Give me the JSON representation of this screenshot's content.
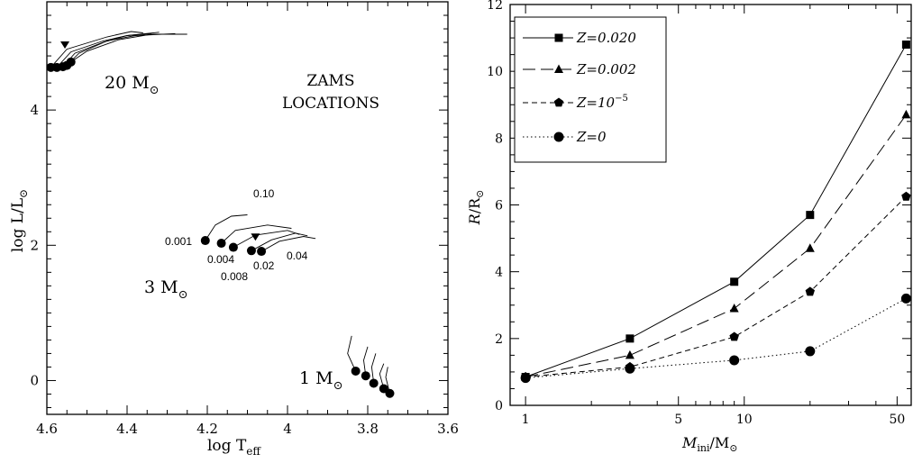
{
  "chart_data": [
    {
      "type": "scatter",
      "title": "",
      "xlabel": "log T",
      "xlabel_sub": "eff",
      "ylabel": "log L/L",
      "ylabel_sub": "⊙",
      "xlim": [
        4.6,
        3.6
      ],
      "ylim": [
        -0.5,
        5.6
      ],
      "x_ticks": [
        {
          "value": 4.6,
          "label": "4.6"
        },
        {
          "value": 4.4,
          "label": "4.4"
        },
        {
          "value": 4.2,
          "label": "4.2"
        },
        {
          "value": 4.0,
          "label": "4"
        },
        {
          "value": 3.8,
          "label": "3.8"
        },
        {
          "value": 3.6,
          "label": "3.6"
        }
      ],
      "y_ticks": [
        {
          "value": 0,
          "label": "0"
        },
        {
          "value": 2,
          "label": "2"
        },
        {
          "value": 4,
          "label": "4"
        }
      ],
      "annotations": [
        {
          "id": "zams-line1",
          "text": "ZAMS"
        },
        {
          "id": "zams-line2",
          "text": "LOCATIONS"
        }
      ],
      "mass_groups": [
        {
          "label": "20 M",
          "label_sub": "⊙",
          "zams_points": [
            {
              "x": 4.59,
              "y": 4.63
            },
            {
              "x": 4.575,
              "y": 4.63
            },
            {
              "x": 4.56,
              "y": 4.64
            },
            {
              "x": 4.55,
              "y": 4.66
            },
            {
              "x": 4.54,
              "y": 4.71
            }
          ],
          "tracks": [
            [
              [
                4.59,
                4.63
              ],
              [
                4.55,
                4.9
              ],
              [
                4.45,
                5.08
              ],
              [
                4.39,
                5.16
              ],
              [
                4.36,
                5.14
              ]
            ],
            [
              [
                4.575,
                4.63
              ],
              [
                4.54,
                4.86
              ],
              [
                4.46,
                5.02
              ],
              [
                4.4,
                5.1
              ],
              [
                4.34,
                5.13
              ]
            ],
            [
              [
                4.56,
                4.64
              ],
              [
                4.53,
                4.84
              ],
              [
                4.46,
                5.0
              ],
              [
                4.4,
                5.1
              ],
              [
                4.32,
                5.15
              ]
            ],
            [
              [
                4.55,
                4.66
              ],
              [
                4.52,
                4.84
              ],
              [
                4.45,
                5.02
              ],
              [
                4.38,
                5.1
              ],
              [
                4.28,
                5.13
              ]
            ],
            [
              [
                4.54,
                4.71
              ],
              [
                4.5,
                4.87
              ],
              [
                4.42,
                5.04
              ],
              [
                4.34,
                5.12
              ],
              [
                4.25,
                5.12
              ]
            ]
          ],
          "marker": {
            "x": 4.555,
            "y": 4.96
          }
        },
        {
          "label": "3 M",
          "label_sub": "⊙",
          "zams_points": [
            {
              "x": 4.205,
              "y": 2.07
            },
            {
              "x": 4.165,
              "y": 2.03
            },
            {
              "x": 4.135,
              "y": 1.97
            },
            {
              "x": 4.09,
              "y": 1.92
            },
            {
              "x": 4.065,
              "y": 1.91
            }
          ],
          "tracks": [
            [
              [
                4.205,
                2.07
              ],
              [
                4.18,
                2.3
              ],
              [
                4.14,
                2.43
              ],
              [
                4.1,
                2.45
              ]
            ],
            [
              [
                4.165,
                2.03
              ],
              [
                4.13,
                2.22
              ],
              [
                4.05,
                2.3
              ],
              [
                3.99,
                2.25
              ]
            ],
            [
              [
                4.135,
                1.97
              ],
              [
                4.08,
                2.15
              ],
              [
                4.0,
                2.22
              ],
              [
                3.97,
                2.16
              ]
            ],
            [
              [
                4.09,
                1.92
              ],
              [
                4.04,
                2.08
              ],
              [
                3.98,
                2.18
              ],
              [
                3.95,
                2.14
              ]
            ],
            [
              [
                4.065,
                1.91
              ],
              [
                4.02,
                2.06
              ],
              [
                3.96,
                2.13
              ],
              [
                3.93,
                2.1
              ]
            ]
          ],
          "marker": {
            "x": 4.08,
            "y": 2.12
          }
        },
        {
          "label": "1 M",
          "label_sub": "⊙",
          "zams_points": [
            {
              "x": 3.83,
              "y": 0.14
            },
            {
              "x": 3.805,
              "y": 0.07
            },
            {
              "x": 3.785,
              "y": -0.04
            },
            {
              "x": 3.76,
              "y": -0.12
            },
            {
              "x": 3.745,
              "y": -0.19
            }
          ],
          "tracks": [
            [
              [
                3.83,
                0.14
              ],
              [
                3.85,
                0.4
              ],
              [
                3.84,
                0.66
              ]
            ],
            [
              [
                3.805,
                0.07
              ],
              [
                3.81,
                0.3
              ],
              [
                3.8,
                0.5
              ]
            ],
            [
              [
                3.785,
                -0.04
              ],
              [
                3.79,
                0.2
              ],
              [
                3.78,
                0.4
              ]
            ],
            [
              [
                3.76,
                -0.12
              ],
              [
                3.77,
                0.1
              ],
              [
                3.76,
                0.25
              ]
            ],
            [
              [
                3.745,
                -0.19
              ],
              [
                3.755,
                0.05
              ],
              [
                3.75,
                0.2
              ]
            ]
          ]
        }
      ],
      "metallicity_labels": [
        {
          "text": "0.10"
        },
        {
          "text": "0.001"
        },
        {
          "text": "0.004"
        },
        {
          "text": "0.008"
        },
        {
          "text": "0.02"
        },
        {
          "text": "0.04"
        }
      ]
    },
    {
      "type": "line",
      "title": "",
      "xlabel": "M",
      "xlabel_sub": "ini",
      "xlabel_tail": "/M",
      "xlabel_tail_sub": "⊙",
      "ylabel": "R",
      "ylabel_tail": "/R",
      "ylabel_tail_sub": "⊙",
      "x_scale": "log",
      "xlim": [
        0.85,
        58
      ],
      "ylim": [
        0,
        12
      ],
      "x_ticks": [
        {
          "value": 1,
          "label": "1"
        },
        {
          "value": 5,
          "label": "5"
        },
        {
          "value": 10,
          "label": "10"
        },
        {
          "value": 50,
          "label": "50"
        }
      ],
      "y_ticks": [
        {
          "value": 0,
          "label": "0"
        },
        {
          "value": 2,
          "label": "2"
        },
        {
          "value": 4,
          "label": "4"
        },
        {
          "value": 6,
          "label": "6"
        },
        {
          "value": 8,
          "label": "8"
        },
        {
          "value": 10,
          "label": "10"
        },
        {
          "value": 12,
          "label": "12"
        }
      ],
      "legend_position": "top-left",
      "series": [
        {
          "name": "Z=0.020",
          "name_sup": "",
          "marker": "square",
          "dash": "solid",
          "x": [
            1,
            3,
            9,
            20,
            55
          ],
          "y": [
            0.85,
            2.0,
            3.7,
            5.7,
            10.8
          ]
        },
        {
          "name": "Z=0.002",
          "name_sup": "",
          "marker": "triangle",
          "dash": "long-dash",
          "x": [
            1,
            3,
            9,
            20,
            55
          ],
          "y": [
            0.85,
            1.5,
            2.9,
            4.7,
            8.7
          ]
        },
        {
          "name": "Z=10",
          "name_sup": "−5",
          "marker": "pentagon",
          "dash": "short-dash",
          "x": [
            1,
            3,
            9,
            20,
            55
          ],
          "y": [
            0.85,
            1.15,
            2.05,
            3.4,
            6.25
          ]
        },
        {
          "name": "Z=0",
          "name_sup": "",
          "marker": "circle",
          "dash": "dotted",
          "x": [
            1,
            3,
            9,
            20,
            55
          ],
          "y": [
            0.82,
            1.1,
            1.35,
            1.62,
            3.2
          ]
        }
      ]
    }
  ]
}
